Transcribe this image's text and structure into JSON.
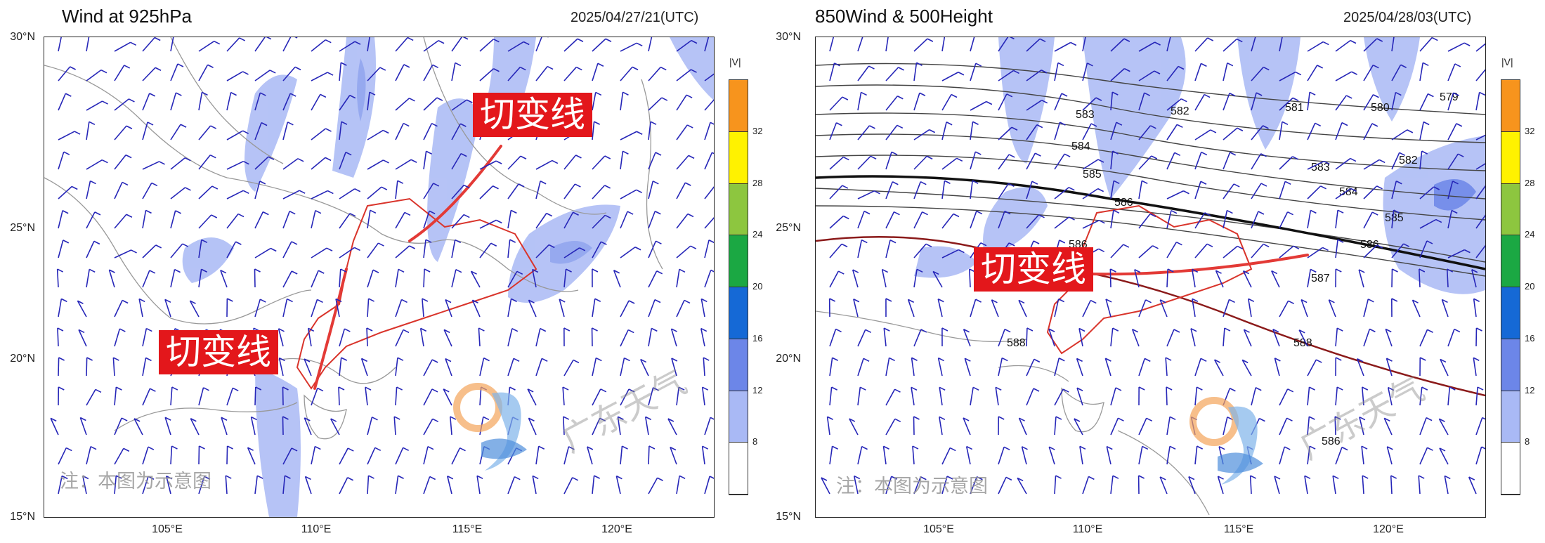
{
  "left_panel": {
    "title": "Wind at 925hPa",
    "timestamp": "2025/04/27/21(UTC)",
    "y_ticks": [
      "30°N",
      "25°N",
      "20°N",
      "15°N"
    ],
    "x_ticks": [
      "105°E",
      "110°E",
      "115°E",
      "120°E"
    ],
    "colorbar": {
      "title": "|V|",
      "ticks": [
        "32",
        "28",
        "24",
        "20",
        "16",
        "12",
        "8"
      ],
      "colors": [
        "#f7941d",
        "#fff200",
        "#8dc63f",
        "#1ba843",
        "#1569d6",
        "#6c86e8",
        "#a9b9f5",
        "#ffffff"
      ]
    },
    "shear_labels": [
      "切变线",
      "切变线"
    ],
    "note": "注：本图为示意图",
    "watermark": "广东天气"
  },
  "right_panel": {
    "title": "850Wind & 500Height",
    "timestamp": "2025/04/28/03(UTC)",
    "y_ticks": [
      "30°N",
      "25°N",
      "20°N",
      "15°N"
    ],
    "x_ticks": [
      "105°E",
      "110°E",
      "115°E",
      "120°E"
    ],
    "colorbar": {
      "title": "|V|",
      "ticks": [
        "32",
        "28",
        "24",
        "20",
        "16",
        "12",
        "8"
      ],
      "colors": [
        "#f7941d",
        "#fff200",
        "#8dc63f",
        "#1ba843",
        "#1569d6",
        "#6c86e8",
        "#a9b9f5",
        "#ffffff"
      ]
    },
    "contour_labels": [
      "583",
      "582",
      "581",
      "580",
      "579",
      "584",
      "582",
      "585",
      "583",
      "586",
      "584",
      "585",
      "586",
      "586",
      "587",
      "588",
      "588",
      "586"
    ],
    "shear_label": "切变线",
    "note": "注：本图为示意图",
    "watermark": "广东天气"
  }
}
